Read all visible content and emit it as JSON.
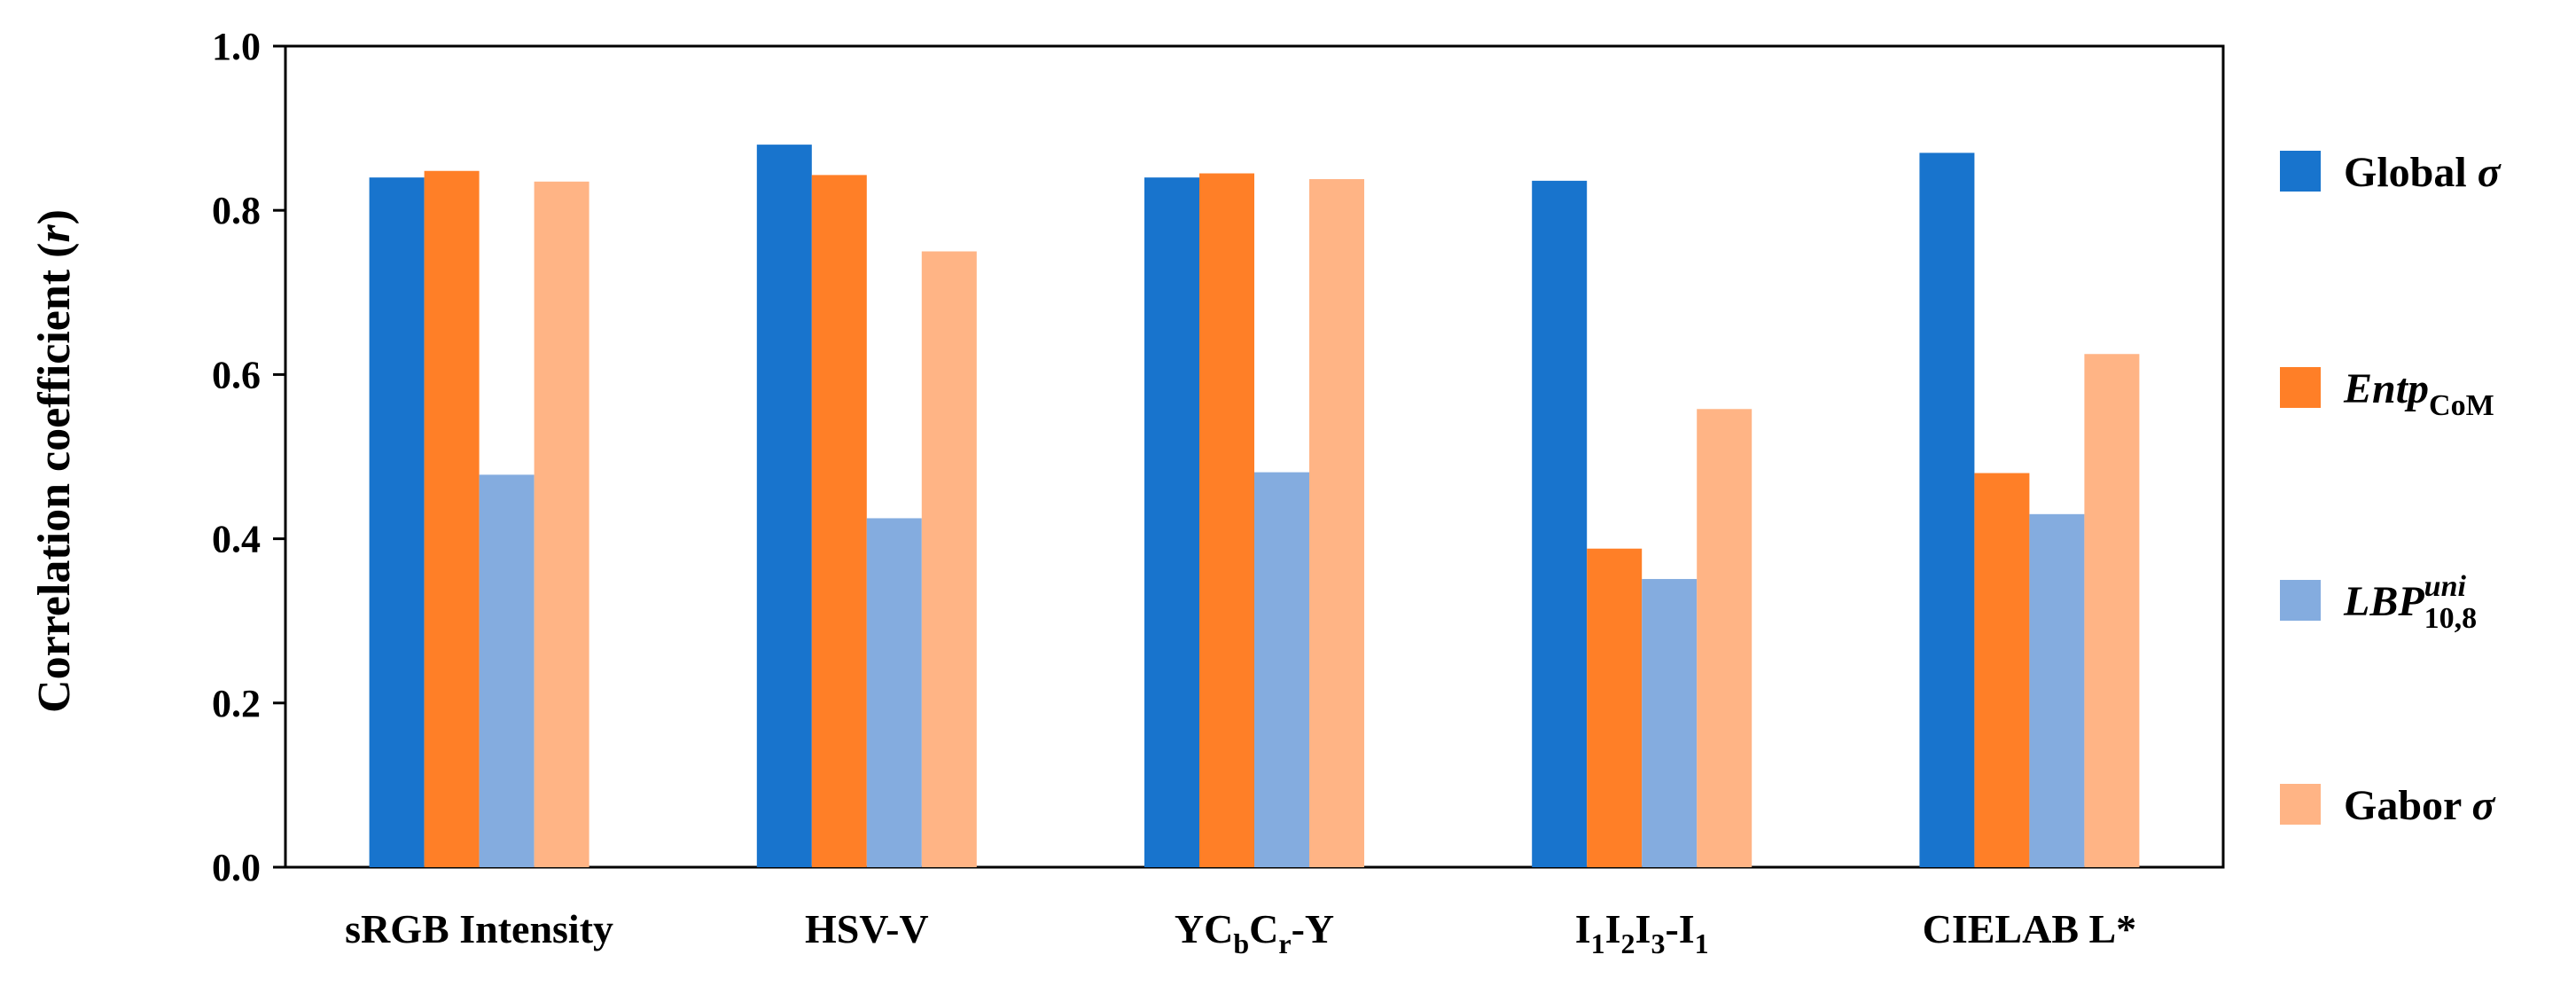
{
  "chart_data": {
    "type": "bar",
    "title": "",
    "xlabel": "",
    "ylabel": "Correlation coefficient (",
    "ylabel_var": "r",
    "ylabel_close": ")",
    "ylim": [
      0,
      1.0
    ],
    "yticks": [
      "0.0",
      "0.2",
      "0.4",
      "0.6",
      "0.8",
      "1.0"
    ],
    "grid": false,
    "legend_position": "right",
    "categories": [
      {
        "main": "sRGB Intensity"
      },
      {
        "main": "HSV-V"
      },
      {
        "parts": [
          [
            "YC",
            ""
          ],
          [
            "b",
            "sub"
          ],
          [
            "C",
            ""
          ],
          [
            "r",
            "sub"
          ],
          [
            "-Y",
            ""
          ]
        ]
      },
      {
        "parts": [
          [
            "I",
            ""
          ],
          [
            "1",
            "sub"
          ],
          [
            "I",
            ""
          ],
          [
            "2",
            "sub"
          ],
          [
            "I",
            ""
          ],
          [
            "3",
            "sub"
          ],
          [
            "-I",
            ""
          ],
          [
            "1",
            "sub"
          ]
        ]
      },
      {
        "main": "CIELAB L*"
      }
    ],
    "series": [
      {
        "name": "Global σ",
        "color": "#1874cd",
        "values": [
          0.84,
          0.88,
          0.84,
          0.836,
          0.87
        ]
      },
      {
        "name": "Entp CoM",
        "color": "#ff7f27",
        "values": [
          0.848,
          0.843,
          0.845,
          0.388,
          0.48
        ]
      },
      {
        "name": "LBP uni 10,8",
        "color": "#84acdf",
        "values": [
          0.478,
          0.425,
          0.481,
          0.351,
          0.43
        ]
      },
      {
        "name": "Gabor σ",
        "color": "#ffb485",
        "values": [
          0.835,
          0.75,
          0.838,
          0.558,
          0.625
        ]
      }
    ],
    "legend": [
      {
        "parts": [
          [
            "Global ",
            "",
            ""
          ],
          [
            "σ",
            "it",
            ""
          ]
        ]
      },
      {
        "parts": [
          [
            "Entp",
            "it",
            ""
          ],
          [
            "CoM",
            "",
            "sub"
          ]
        ]
      },
      {
        "parts": [
          [
            "LBP",
            "it",
            ""
          ],
          [
            "uni",
            "it",
            "sup"
          ],
          [
            "10,8",
            "",
            "sub"
          ]
        ]
      },
      {
        "parts": [
          [
            "Gabor ",
            "",
            ""
          ],
          [
            "σ",
            "it",
            ""
          ]
        ]
      }
    ]
  }
}
